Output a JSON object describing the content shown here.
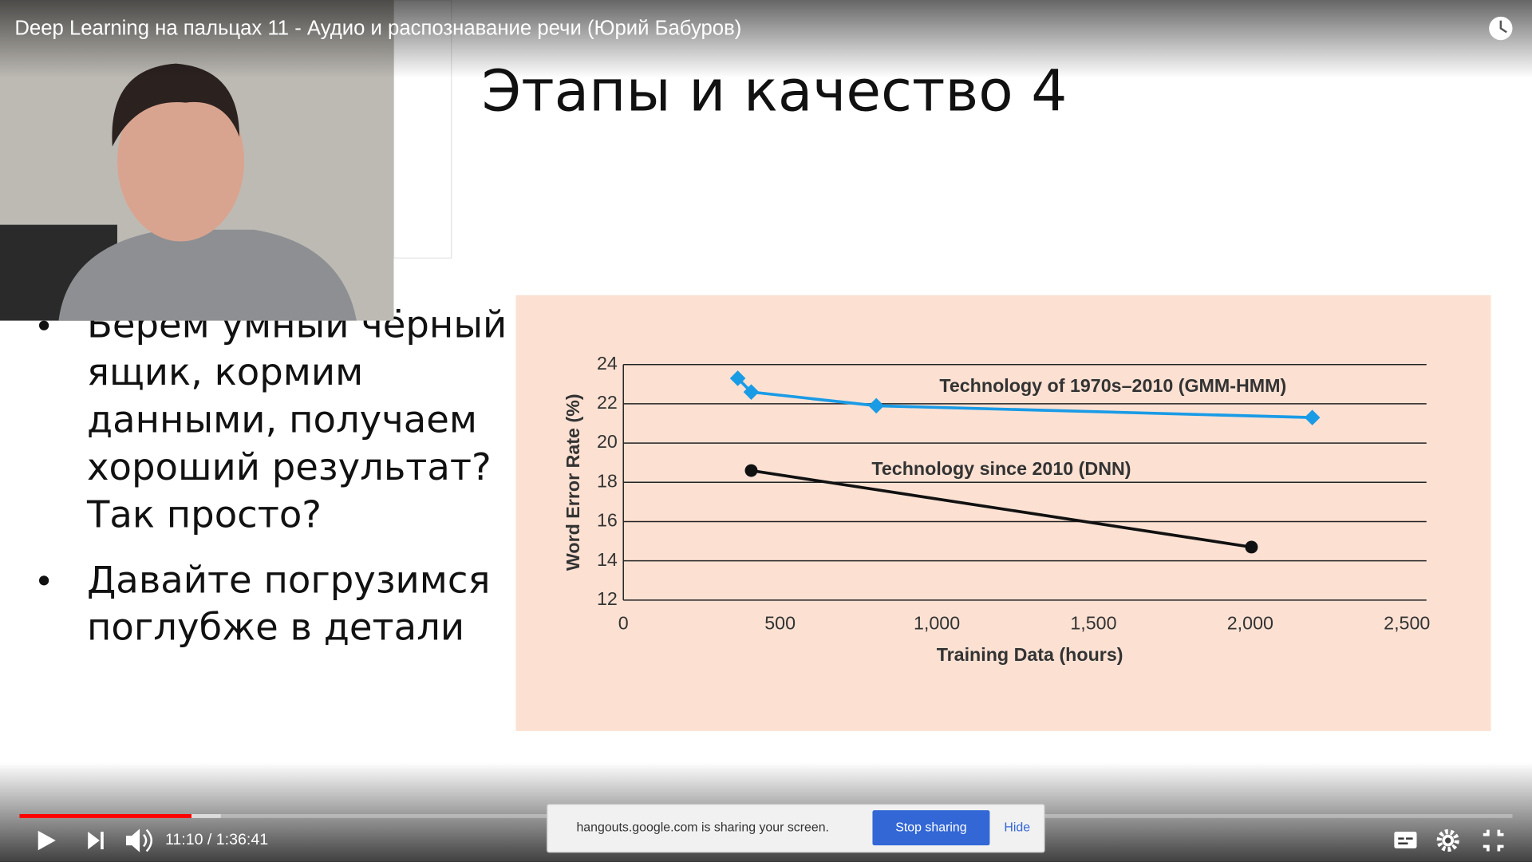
{
  "player": {
    "title": "Deep Learning на пальцах 11 - Аудио и распознавание речи (Юрий Бабуров)",
    "time": "11:10 / 1:36:41",
    "share_notice": "hangouts.google.com is sharing your screen.",
    "stop_button": "Stop sharing",
    "hide_button": "Hide"
  },
  "slide": {
    "title": "Этапы и качество 4",
    "bullets": [
      [
        "Берем умный чёрный",
        "ящик, кормим",
        "данными, получаем",
        "хороший результат?",
        "Так просто?"
      ],
      [
        "Давайте погрузимся",
        "поглубже в детали"
      ]
    ]
  },
  "chart_data": {
    "type": "line",
    "xlabel": "Training Data (hours)",
    "ylabel": "Word Error Rate (%)",
    "xlim": [
      0,
      2500
    ],
    "xticks": [
      0,
      500,
      {
        "value": 1000,
        "label": "1,000"
      },
      {
        "value": 1500,
        "label": "1,500"
      },
      {
        "value": 2000,
        "label": "2,000"
      },
      {
        "value": 2500,
        "label": "2,500"
      }
    ],
    "ylim": [
      12,
      24
    ],
    "yticks": [
      12,
      14,
      16,
      18,
      20,
      22,
      24
    ],
    "grid": true,
    "series": [
      {
        "name": "Technology of 1970s–2010 (GMM-HMM)",
        "color": "#1a9be6",
        "marker": "diamond",
        "x": [
          365,
          408,
          807,
          2198
        ],
        "values": [
          23.3,
          22.6,
          21.9,
          21.3
        ]
      },
      {
        "name": "Technology since 2010 (DNN)",
        "color": "#111111",
        "marker": "circle",
        "x": [
          408,
          2004
        ],
        "values": [
          18.6,
          14.7
        ]
      }
    ]
  }
}
